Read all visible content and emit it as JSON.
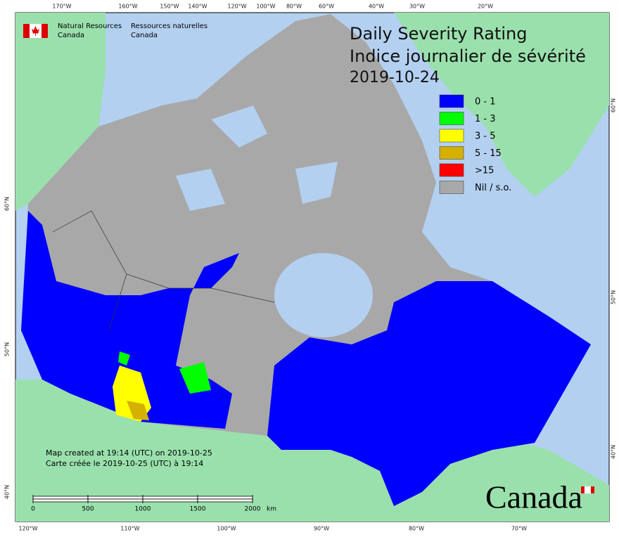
{
  "agency": {
    "en": [
      "Natural Resources",
      "Canada"
    ],
    "fr": [
      "Ressources naturelles",
      "Canada"
    ]
  },
  "title": [
    "Daily Severity Rating",
    "Indice journalier de sévérité",
    "2019-10-24"
  ],
  "legend": [
    {
      "label": "0 - 1",
      "color": "#0000ff"
    },
    {
      "label": "1 - 3",
      "color": "#00ff00"
    },
    {
      "label": "3 - 5",
      "color": "#ffff00"
    },
    {
      "label": "5 - 15",
      "color": "#d4b000"
    },
    {
      "label": ">15",
      "color": "#ff0000"
    },
    {
      "label": "Nil / s.o.",
      "color": "#a8a8a8"
    }
  ],
  "graticule": {
    "top": [
      "170°W",
      "160°W",
      "150°W",
      "140°W",
      "120°W",
      "100°W",
      "80°W",
      "60°W",
      "40°W",
      "30°W",
      "20°W"
    ],
    "bottom": [
      "120°W",
      "110°W",
      "100°W",
      "90°W",
      "80°W",
      "70°W"
    ],
    "left": [
      "60°N",
      "50°N",
      "40°N"
    ],
    "right": [
      "60°N",
      "50°N",
      "40°N"
    ]
  },
  "credits": [
    "Map created at 19:14 (UTC) on 2019-10-25",
    "Carte créée le 2019-10-25 (UTC) à 19:14"
  ],
  "scale_bar": {
    "ticks": [
      0,
      500,
      1000,
      1500,
      2000
    ],
    "unit": "km"
  },
  "wordmark": "Canada"
}
